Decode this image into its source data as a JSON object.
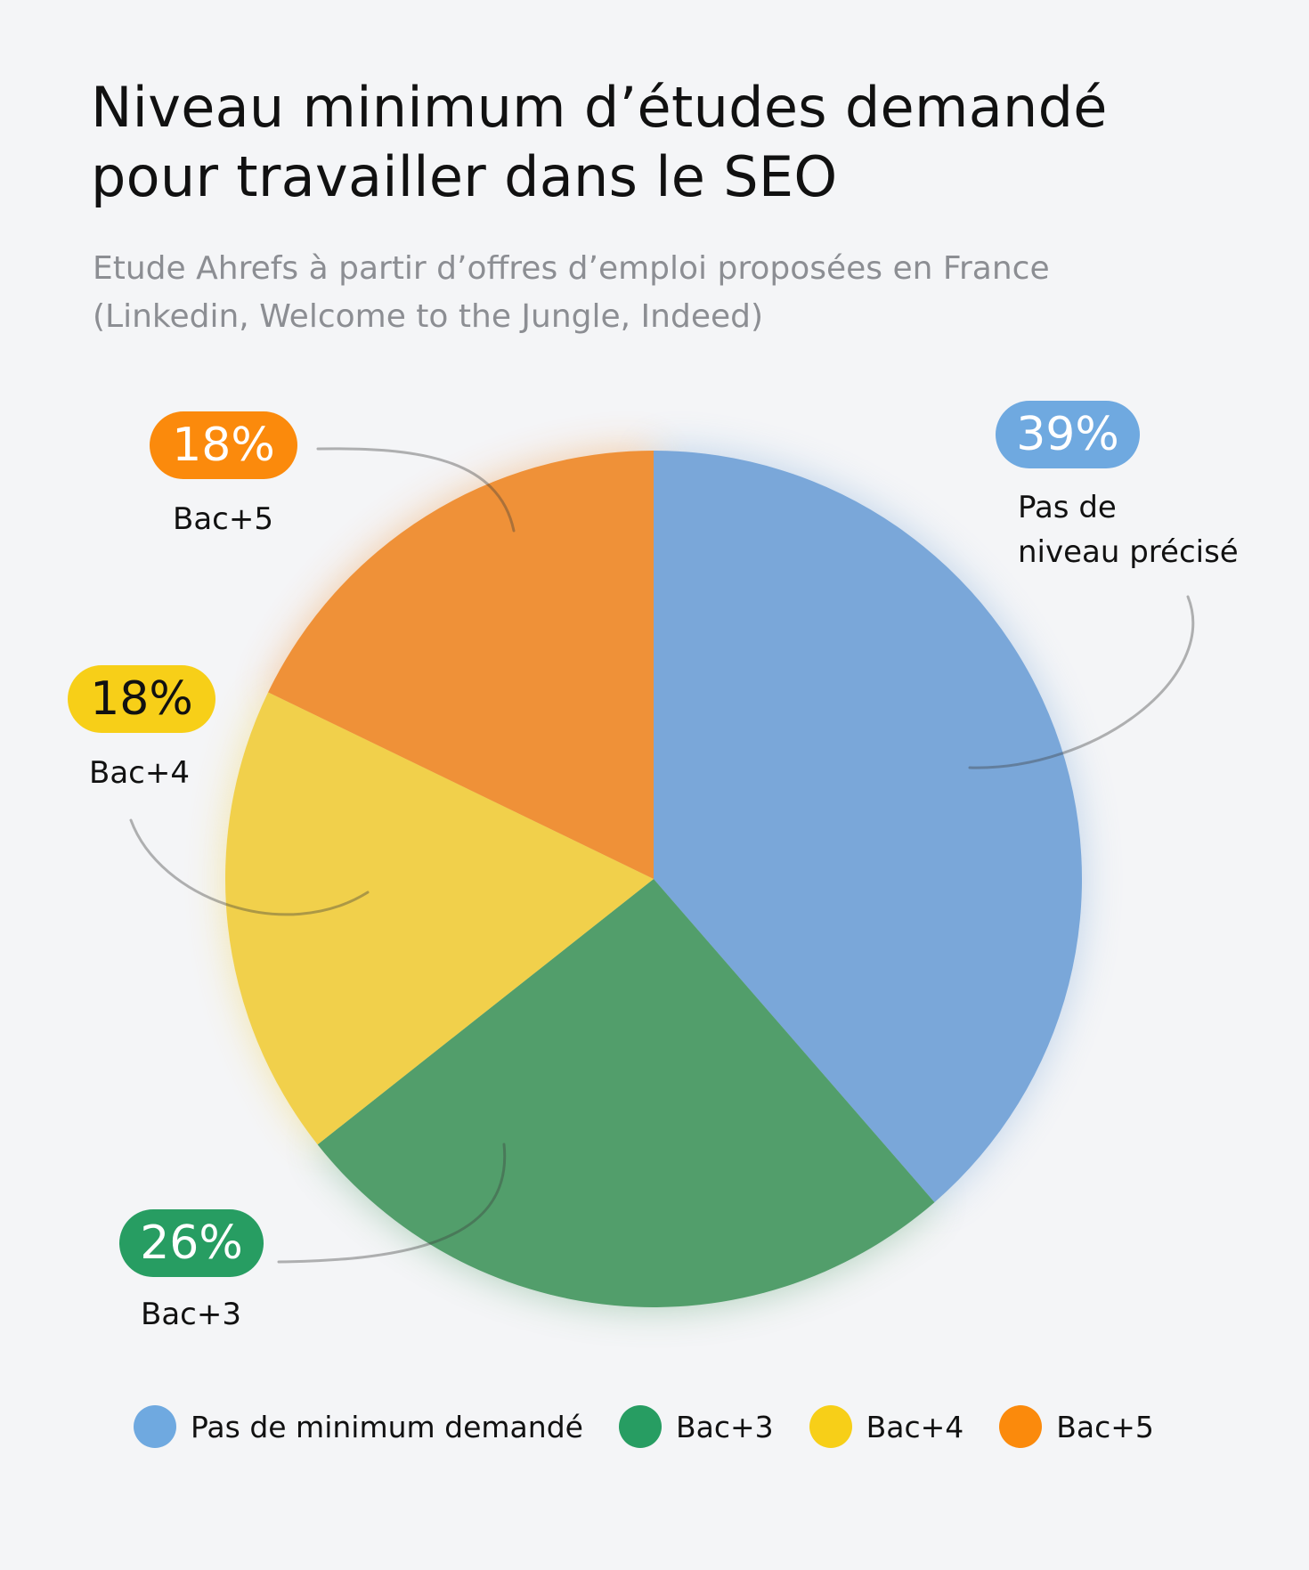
{
  "chart_data": {
    "type": "pie",
    "title": "Niveau minimum d’études demandé\npour travailler dans le SEO",
    "subtitle": "Etude Ahrefs à partir d’offres d’emploi proposées en France\n(Linkedin, Welcome to the Jungle, Indeed)",
    "slices": [
      {
        "label": "Pas de\nniveau précisé",
        "value": 39,
        "display": "39%",
        "color": "#7aa7d9",
        "badge_color": "#6fa9e0",
        "badge_text_color": "#ffffff"
      },
      {
        "label": "Bac+3",
        "value": 26,
        "display": "26%",
        "color": "#529e6b",
        "badge_color": "#279d62",
        "badge_text_color": "#ffffff"
      },
      {
        "label": "Bac+4",
        "value": 18,
        "display": "18%",
        "color": "#f1d04b",
        "badge_color": "#f7cf18",
        "badge_text_color": "#111111"
      },
      {
        "label": "Bac+5",
        "value": 18,
        "display": "18%",
        "color": "#ef9138",
        "badge_color": "#fb8a0c",
        "badge_text_color": "#ffffff"
      }
    ],
    "legend": [
      {
        "label": "Pas de minimum demandé",
        "color": "#6fa9e0"
      },
      {
        "label": "Bac+3",
        "color": "#279d62"
      },
      {
        "label": "Bac+4",
        "color": "#f7cf18"
      },
      {
        "label": "Bac+5",
        "color": "#fb8a0c"
      }
    ],
    "legend_position": "bottom"
  }
}
